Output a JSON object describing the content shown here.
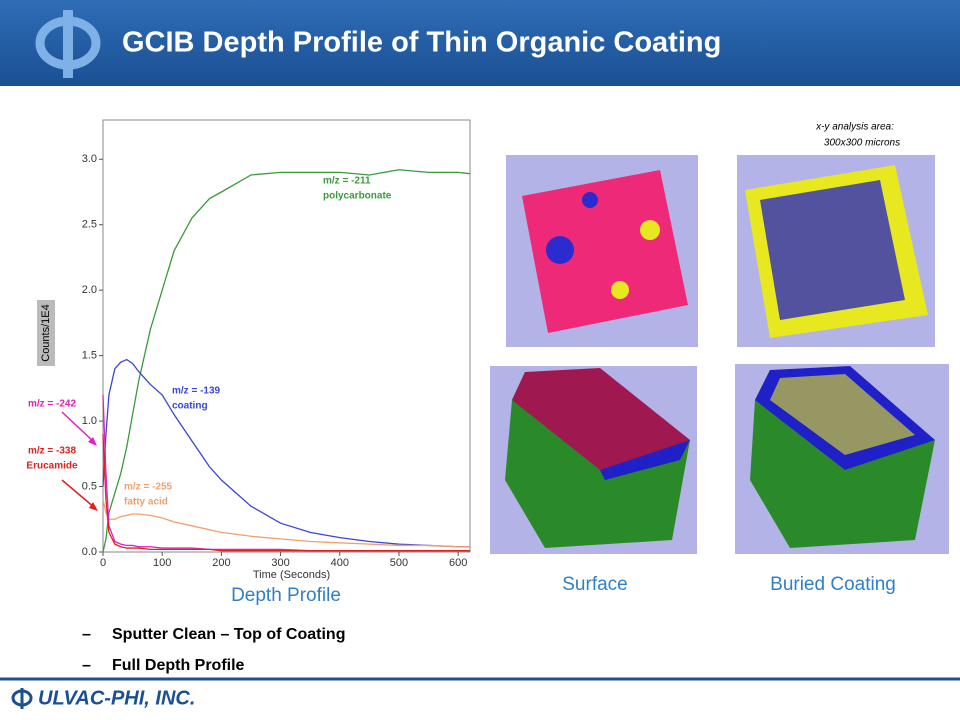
{
  "header": {
    "title": "GCIB Depth Profile of Thin Organic Coating"
  },
  "chart_data": {
    "type": "line",
    "x_label": "Time (Seconds)",
    "y_label": "Counts/1E4",
    "xlim": [
      0,
      620
    ],
    "ylim": [
      0,
      3.3
    ],
    "xticks": [
      0,
      100,
      200,
      300,
      400,
      500,
      600
    ],
    "yticks": [
      {
        "value": 0,
        "label": "0.0"
      },
      0.5,
      {
        "value": 1,
        "label": "1.0"
      },
      1.5,
      {
        "value": 2,
        "label": "2.0"
      },
      2.5,
      {
        "value": 3,
        "label": "3.0"
      }
    ],
    "x": [
      0,
      5,
      10,
      20,
      30,
      40,
      50,
      60,
      80,
      100,
      120,
      150,
      180,
      200,
      250,
      300,
      350,
      400,
      450,
      500,
      550,
      600,
      620
    ],
    "series": [
      {
        "name": "m/z = -211",
        "note": "polycarbonate",
        "color": "#3a9a3a",
        "values": [
          0,
          0.1,
          0.3,
          0.45,
          0.6,
          0.8,
          1.05,
          1.3,
          1.7,
          2.0,
          2.3,
          2.55,
          2.7,
          2.75,
          2.88,
          2.9,
          2.9,
          2.9,
          2.88,
          2.92,
          2.9,
          2.9,
          2.89
        ]
      },
      {
        "name": "m/z = -139",
        "note": "coating",
        "color": "#3b44d8",
        "values": [
          0.5,
          0.9,
          1.2,
          1.4,
          1.45,
          1.47,
          1.44,
          1.38,
          1.28,
          1.2,
          1.05,
          0.85,
          0.65,
          0.55,
          0.35,
          0.22,
          0.15,
          0.11,
          0.08,
          0.06,
          0.05,
          0.04,
          0.04
        ]
      },
      {
        "name": "m/z = -255",
        "note": "fatty acid",
        "color": "#f0a070",
        "values": [
          0.4,
          0.3,
          0.25,
          0.25,
          0.27,
          0.28,
          0.29,
          0.29,
          0.28,
          0.26,
          0.23,
          0.2,
          0.17,
          0.15,
          0.12,
          0.1,
          0.08,
          0.07,
          0.06,
          0.05,
          0.05,
          0.04,
          0.04
        ]
      },
      {
        "name": "m/z = -242",
        "color": "#e020c0",
        "values": [
          1.2,
          0.6,
          0.2,
          0.08,
          0.06,
          0.05,
          0.05,
          0.04,
          0.04,
          0.03,
          0.03,
          0.03,
          0.02,
          0.02,
          0.02,
          0.02,
          0.01,
          0.01,
          0.01,
          0.01,
          0.01,
          0.01,
          0.01
        ]
      },
      {
        "name": "m/z = -338",
        "note": "Erucamide",
        "color": "#e02020",
        "values": [
          0.9,
          0.4,
          0.15,
          0.06,
          0.04,
          0.03,
          0.03,
          0.03,
          0.02,
          0.02,
          0.02,
          0.02,
          0.02,
          0.01,
          0.01,
          0.01,
          0.01,
          0.01,
          0.01,
          0.01,
          0.01,
          0.01,
          0.01
        ]
      }
    ]
  },
  "chart_caption": "Depth Profile",
  "images": {
    "note": [
      "x-y analysis area:",
      "300x300 microns"
    ],
    "captions": [
      "Surface",
      "Buried Coating"
    ]
  },
  "bullets": [
    "Sputter Clean – Top of Coating",
    "Full Depth Profile"
  ],
  "footer": {
    "company": "ULVAC-PHI, INC."
  }
}
